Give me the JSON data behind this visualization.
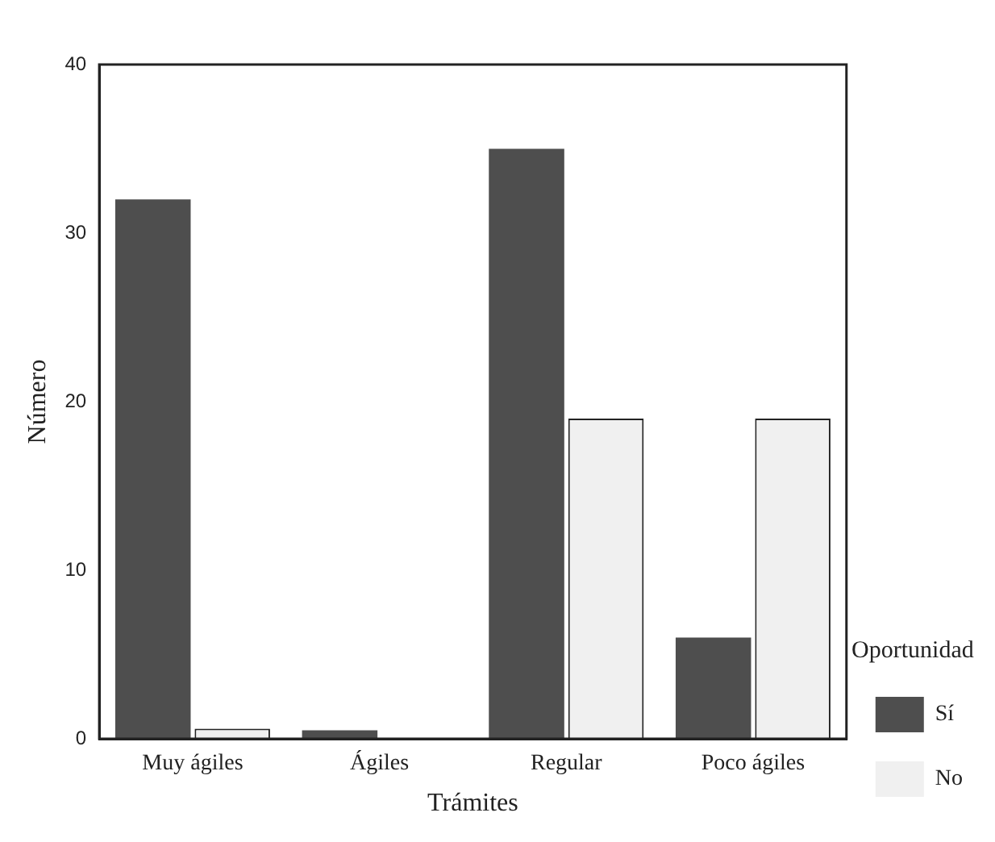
{
  "chart_data": {
    "type": "bar",
    "xlabel": "Trámites",
    "ylabel": "Número",
    "legend_title": "Oportunidad",
    "categories": [
      "Muy ágiles",
      "Ágiles",
      "Regular",
      "Poco ágiles"
    ],
    "series": [
      {
        "name": "Sí",
        "color": "#4e4e4e",
        "values": [
          32,
          0.5,
          35,
          6
        ]
      },
      {
        "name": "No",
        "color": "#f0f0f0",
        "values": [
          0.6,
          0,
          19,
          19
        ]
      }
    ],
    "ylim": [
      0,
      40
    ],
    "yticks": [
      0,
      10,
      20,
      30,
      40
    ],
    "grid": false,
    "legend": "right"
  }
}
